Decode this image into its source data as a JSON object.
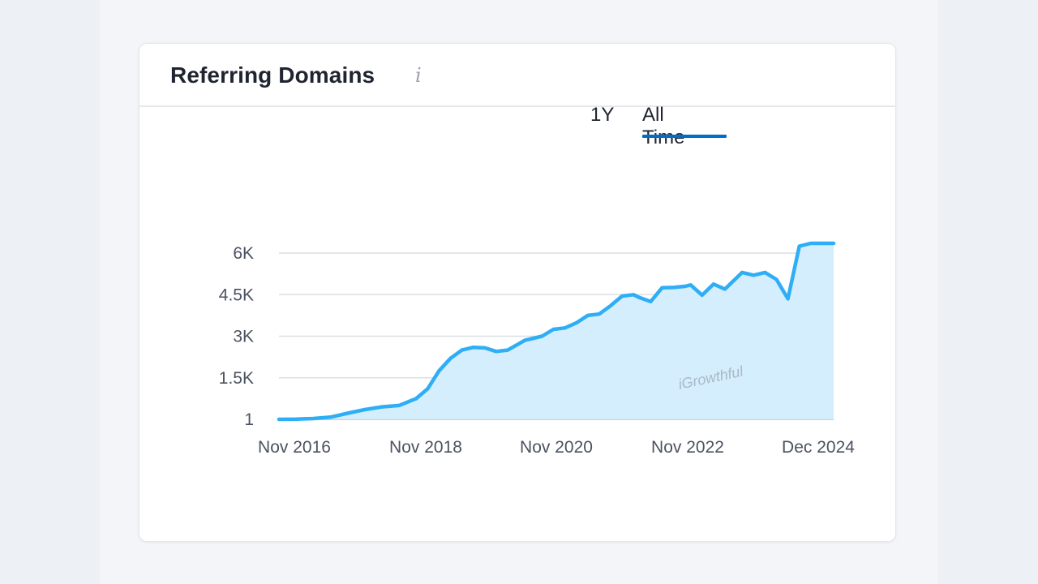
{
  "card": {
    "title": "Referring Domains",
    "info_icon": "info-icon"
  },
  "range_tabs": [
    {
      "label": "1Y",
      "active": false
    },
    {
      "label": "All Time",
      "active": true
    }
  ],
  "colors": {
    "line": "#2eaef6",
    "area": "#d5eefd",
    "active_tab": "#006dca",
    "grid": "#dcdfe4"
  },
  "chart_data": {
    "type": "area",
    "title": "",
    "xlabel": "",
    "ylabel": "",
    "x_tick_labels": [
      "Nov 2016",
      "Nov 2018",
      "Nov 2020",
      "Nov 2022",
      "Dec 2024"
    ],
    "y_tick_labels": [
      "1",
      "1.5K",
      "3K",
      "4.5K",
      "6K"
    ],
    "y_ticks": [
      1,
      1500,
      3000,
      4500,
      6000
    ],
    "ylim": [
      1,
      6600
    ],
    "xlim": [
      "2016-11",
      "2024-12"
    ],
    "grid": true,
    "legend": "none",
    "annotations": [
      "iGrowthful"
    ],
    "series": [
      {
        "x": [
          "2016-11",
          "2017-02",
          "2017-05",
          "2017-08",
          "2017-11",
          "2018-02",
          "2018-05",
          "2018-08",
          "2018-11",
          "2019-01",
          "2019-03",
          "2019-05",
          "2019-07",
          "2019-09",
          "2019-11",
          "2020-01",
          "2020-03",
          "2020-06",
          "2020-09",
          "2020-11",
          "2021-01",
          "2021-03",
          "2021-05",
          "2021-07",
          "2021-09",
          "2021-11",
          "2022-01",
          "2022-02",
          "2022-04",
          "2022-06",
          "2022-08",
          "2022-10",
          "2022-11",
          "2023-01",
          "2023-03",
          "2023-05",
          "2023-07",
          "2023-08",
          "2023-10",
          "2023-12",
          "2024-02",
          "2024-04",
          "2024-06",
          "2024-08",
          "2024-09",
          "2024-10",
          "2024-11",
          "2024-12"
        ],
        "values": [
          1,
          5,
          30,
          80,
          220,
          350,
          450,
          500,
          750,
          1100,
          1750,
          2200,
          2500,
          2600,
          2580,
          2450,
          2500,
          2850,
          3000,
          3250,
          3300,
          3480,
          3750,
          3800,
          4100,
          4450,
          4500,
          4400,
          4250,
          4750,
          4760,
          4800,
          4850,
          4480,
          4880,
          4700,
          5100,
          5300,
          5200,
          5300,
          5050,
          4350,
          6250,
          6350,
          6350,
          6350,
          6350,
          6350
        ]
      }
    ]
  }
}
